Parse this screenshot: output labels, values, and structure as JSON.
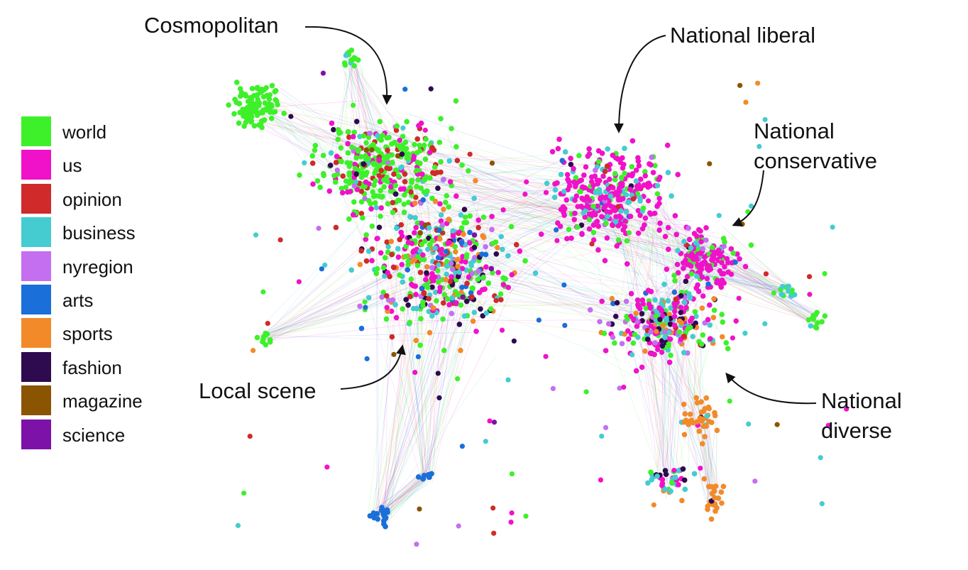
{
  "legend": [
    {
      "label": "world",
      "color": "#3ef02a"
    },
    {
      "label": "us",
      "color": "#f012c8"
    },
    {
      "label": "opinion",
      "color": "#d02a2a"
    },
    {
      "label": "business",
      "color": "#44ccd0"
    },
    {
      "label": "nyregion",
      "color": "#c46ff0"
    },
    {
      "label": "arts",
      "color": "#1a6fd8"
    },
    {
      "label": "sports",
      "color": "#f28a2a"
    },
    {
      "label": "fashion",
      "color": "#2e0a4e"
    },
    {
      "label": "magazine",
      "color": "#8a5400"
    },
    {
      "label": "science",
      "color": "#7c12a8"
    }
  ],
  "annotations": [
    {
      "id": "cosmopolitan",
      "lines": [
        "Cosmopolitan"
      ]
    },
    {
      "id": "national-liberal",
      "lines": [
        "National liberal"
      ]
    },
    {
      "id": "national-conservative",
      "lines": [
        "National",
        "conservative"
      ]
    },
    {
      "id": "local-scene",
      "lines": [
        "Local scene"
      ]
    },
    {
      "id": "national-diverse",
      "lines": [
        "National",
        "diverse"
      ]
    }
  ]
}
